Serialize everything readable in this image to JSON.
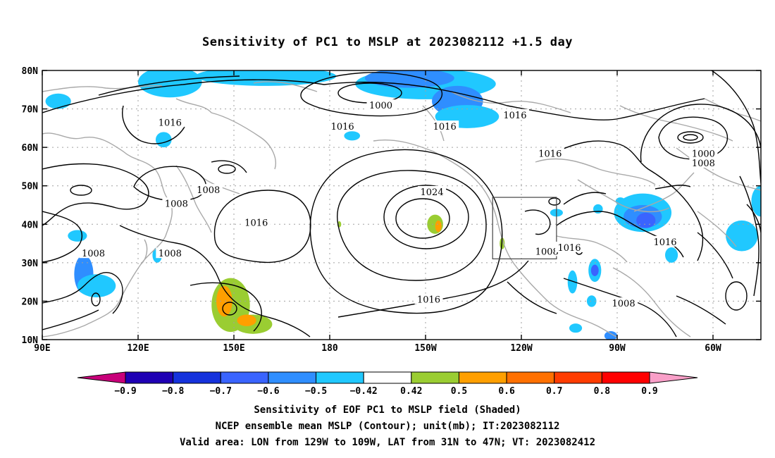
{
  "title": "Sensitivity of PC1 to MSLP at 2023082112 +1.5 day",
  "map": {
    "lon_labels": [
      {
        "lon": 90,
        "text": "90E"
      },
      {
        "lon": 120,
        "text": "120E"
      },
      {
        "lon": 150,
        "text": "150E"
      },
      {
        "lon": 180,
        "text": "180"
      },
      {
        "lon": 210,
        "text": "150W"
      },
      {
        "lon": 240,
        "text": "120W"
      },
      {
        "lon": 270,
        "text": "90W"
      },
      {
        "lon": 300,
        "text": "60W"
      }
    ],
    "lat_labels": [
      {
        "lat": 80,
        "text": "80N"
      },
      {
        "lat": 70,
        "text": "70N"
      },
      {
        "lat": 60,
        "text": "60N"
      },
      {
        "lat": 50,
        "text": "50N"
      },
      {
        "lat": 40,
        "text": "40N"
      },
      {
        "lat": 30,
        "text": "30N"
      },
      {
        "lat": 20,
        "text": "20N"
      },
      {
        "lat": 10,
        "text": "10N"
      }
    ],
    "lon_range": [
      90,
      315
    ],
    "lat_range": [
      10,
      80
    ],
    "gridlines": "dotted",
    "valid_box": {
      "lon_min": 231,
      "lon_max": 251,
      "lat_min": 31,
      "lat_max": 47
    },
    "contour_labels": [
      {
        "text": "1000",
        "lon": 196,
        "lat": 71
      },
      {
        "text": "1016",
        "lon": 238,
        "lat": 68.5
      },
      {
        "text": "1016",
        "lon": 130,
        "lat": 66.5
      },
      {
        "text": "1016",
        "lon": 184,
        "lat": 65.5
      },
      {
        "text": "1016",
        "lon": 216,
        "lat": 65.5
      },
      {
        "text": "1016",
        "lon": 249,
        "lat": 58.5
      },
      {
        "text": "1000",
        "lon": 297,
        "lat": 58.5
      },
      {
        "text": "1008",
        "lon": 297,
        "lat": 56
      },
      {
        "text": "1008",
        "lon": 142,
        "lat": 49
      },
      {
        "text": "1008",
        "lon": 132,
        "lat": 45.5
      },
      {
        "text": "1024",
        "lon": 212,
        "lat": 48.5
      },
      {
        "text": "1016",
        "lon": 157,
        "lat": 40.5
      },
      {
        "text": "1008",
        "lon": 106,
        "lat": 32.5
      },
      {
        "text": "1008",
        "lon": 130,
        "lat": 32.5
      },
      {
        "text": "1008",
        "lon": 248,
        "lat": 33
      },
      {
        "text": "1016",
        "lon": 255,
        "lat": 34
      },
      {
        "text": "1016",
        "lon": 285,
        "lat": 35.5
      },
      {
        "text": "1016",
        "lon": 211,
        "lat": 20.5
      },
      {
        "text": "1008",
        "lon": 272,
        "lat": 19.5
      }
    ],
    "shading": [
      {
        "level": -0.45,
        "lon": 130,
        "lat": 77,
        "rx": 10,
        "ry": 4
      },
      {
        "level": -0.45,
        "lon": 160,
        "lat": 78.5,
        "rx": 22,
        "ry": 2.5
      },
      {
        "level": -0.45,
        "lon": 210,
        "lat": 76.5,
        "rx": 22,
        "ry": 4
      },
      {
        "level": -0.55,
        "lon": 205,
        "lat": 78,
        "rx": 14,
        "ry": 2.5
      },
      {
        "level": -0.55,
        "lon": 220,
        "lat": 72,
        "rx": 8,
        "ry": 4
      },
      {
        "level": -0.45,
        "lon": 223,
        "lat": 68,
        "rx": 10,
        "ry": 3
      },
      {
        "level": -0.45,
        "lon": 95,
        "lat": 72,
        "rx": 4,
        "ry": 2
      },
      {
        "level": -0.45,
        "lon": 128,
        "lat": 62,
        "rx": 2.5,
        "ry": 2
      },
      {
        "level": -0.45,
        "lon": 187,
        "lat": 63,
        "rx": 2.5,
        "ry": 1.2
      },
      {
        "level": -0.45,
        "lon": 101,
        "lat": 37,
        "rx": 3,
        "ry": 1.5
      },
      {
        "level": -0.55,
        "lon": 103,
        "lat": 27,
        "rx": 3,
        "ry": 5
      },
      {
        "level": -0.45,
        "lon": 107,
        "lat": 24,
        "rx": 6,
        "ry": 3
      },
      {
        "level": -0.45,
        "lon": 126,
        "lat": 32,
        "rx": 1.5,
        "ry": 2
      },
      {
        "level": -0.45,
        "lon": 251,
        "lat": 43,
        "rx": 2,
        "ry": 1
      },
      {
        "level": -0.45,
        "lon": 264,
        "lat": 44,
        "rx": 1.5,
        "ry": 1.2
      },
      {
        "level": -0.45,
        "lon": 278,
        "lat": 43,
        "rx": 9,
        "ry": 5
      },
      {
        "level": -0.55,
        "lon": 278,
        "lat": 42,
        "rx": 6,
        "ry": 3
      },
      {
        "level": -0.65,
        "lon": 279,
        "lat": 41,
        "rx": 3,
        "ry": 2
      },
      {
        "level": -0.45,
        "lon": 271,
        "lat": 46,
        "rx": 1.5,
        "ry": 1
      },
      {
        "level": -0.45,
        "lon": 287,
        "lat": 32,
        "rx": 2,
        "ry": 2
      },
      {
        "level": -0.45,
        "lon": 309,
        "lat": 37,
        "rx": 5,
        "ry": 4
      },
      {
        "level": -0.45,
        "lon": 315,
        "lat": 46,
        "rx": 3,
        "ry": 4
      },
      {
        "level": -0.45,
        "lon": 263,
        "lat": 28,
        "rx": 2,
        "ry": 3
      },
      {
        "level": -0.65,
        "lon": 263,
        "lat": 28,
        "rx": 1.2,
        "ry": 1.5
      },
      {
        "level": -0.45,
        "lon": 256,
        "lat": 25,
        "rx": 1.5,
        "ry": 3
      },
      {
        "level": -0.45,
        "lon": 262,
        "lat": 20,
        "rx": 1.5,
        "ry": 1.5
      },
      {
        "level": -0.45,
        "lon": 257,
        "lat": 13,
        "rx": 2,
        "ry": 1.2
      },
      {
        "level": -0.55,
        "lon": 268,
        "lat": 11,
        "rx": 2,
        "ry": 1.2
      },
      {
        "level": 0.45,
        "lon": 149,
        "lat": 19,
        "rx": 6,
        "ry": 7
      },
      {
        "level": 0.45,
        "lon": 156,
        "lat": 14,
        "rx": 6,
        "ry": 2.5
      },
      {
        "level": 0.55,
        "lon": 147,
        "lat": 20,
        "rx": 2.5,
        "ry": 4
      },
      {
        "level": 0.55,
        "lon": 154,
        "lat": 15,
        "rx": 3,
        "ry": 1.5
      },
      {
        "level": 0.45,
        "lon": 213,
        "lat": 40,
        "rx": 2.5,
        "ry": 2.5
      },
      {
        "level": 0.55,
        "lon": 214,
        "lat": 39.5,
        "rx": 1,
        "ry": 1.5
      },
      {
        "level": 0.45,
        "lon": 183,
        "lat": 40,
        "rx": 0.6,
        "ry": 0.8
      },
      {
        "level": 0.45,
        "lon": 234,
        "lat": 35,
        "rx": 0.8,
        "ry": 1.5
      }
    ]
  },
  "colorbar": {
    "colors": [
      "#c8007a",
      "#1f00b4",
      "#1532dc",
      "#3a64ff",
      "#2f8eff",
      "#20c8ff",
      "#ffffff",
      "#9acd32",
      "#ff9f00",
      "#ff7000",
      "#ff3c00",
      "#ff0000",
      "#f99fc8"
    ],
    "labels": [
      "−0.9",
      "−0.8",
      "−0.7",
      "−0.6",
      "−0.5",
      "−0.42",
      "0.42",
      "0.5",
      "0.6",
      "0.7",
      "0.8",
      "0.9"
    ]
  },
  "captions": {
    "line1": "Sensitivity of EOF PC1 to MSLP field (Shaded)",
    "line2": "NCEP ensemble mean MSLP (Contour); unit(mb); IT:2023082112",
    "line3": "Valid area: LON from 129W to 109W, LAT from 31N to 47N; VT: 2023082412"
  }
}
